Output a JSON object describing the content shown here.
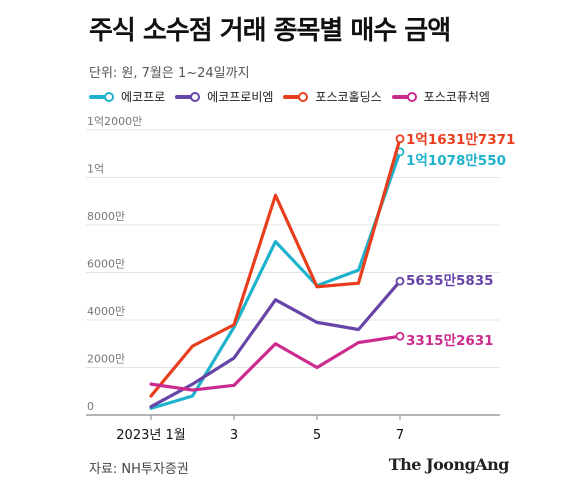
{
  "title": "주식 소수점 거래 종목별 매수 금액",
  "subtitle": "단위: 원, 7월은 1~24일까지",
  "source": "자료: NH투자증권",
  "brand": "The JoongAng",
  "chart_data": {
    "type": "line",
    "categories": [
      "2023년 1월",
      "2",
      "3",
      "4",
      "5",
      "6",
      "7"
    ],
    "x_tick_labels": [
      "2023년 1월",
      "3",
      "5",
      "7"
    ],
    "y_tick_labels": [
      "0",
      "2000만",
      "4000만",
      "6000만",
      "8000만",
      "1억",
      "1억2000만"
    ],
    "ylim": [
      0,
      120000000
    ],
    "grid": true,
    "legend_position": "top",
    "series": [
      {
        "name": "에코프로",
        "color": "#1fb2cc",
        "values": [
          2800000,
          8000000,
          37000000,
          73000000,
          54500000,
          61000000,
          110780550
        ],
        "end_label": "1억1078만550"
      },
      {
        "name": "에코프로비엠",
        "color": "#6644a8",
        "values": [
          3500000,
          13000000,
          24000000,
          48500000,
          39000000,
          36000000,
          56355835
        ],
        "end_label": "5635만5835"
      },
      {
        "name": "포스코홀딩스",
        "color": "#e83e1e",
        "values": [
          8000000,
          29000000,
          38000000,
          92500000,
          54000000,
          55500000,
          116317371
        ],
        "end_label": "1억1631만7371"
      },
      {
        "name": "포스코퓨처엠",
        "color": "#cc2b8e",
        "values": [
          13000000,
          10500000,
          12500000,
          30000000,
          20000000,
          30500000,
          33152631
        ],
        "end_label": "3315만2631"
      }
    ]
  }
}
